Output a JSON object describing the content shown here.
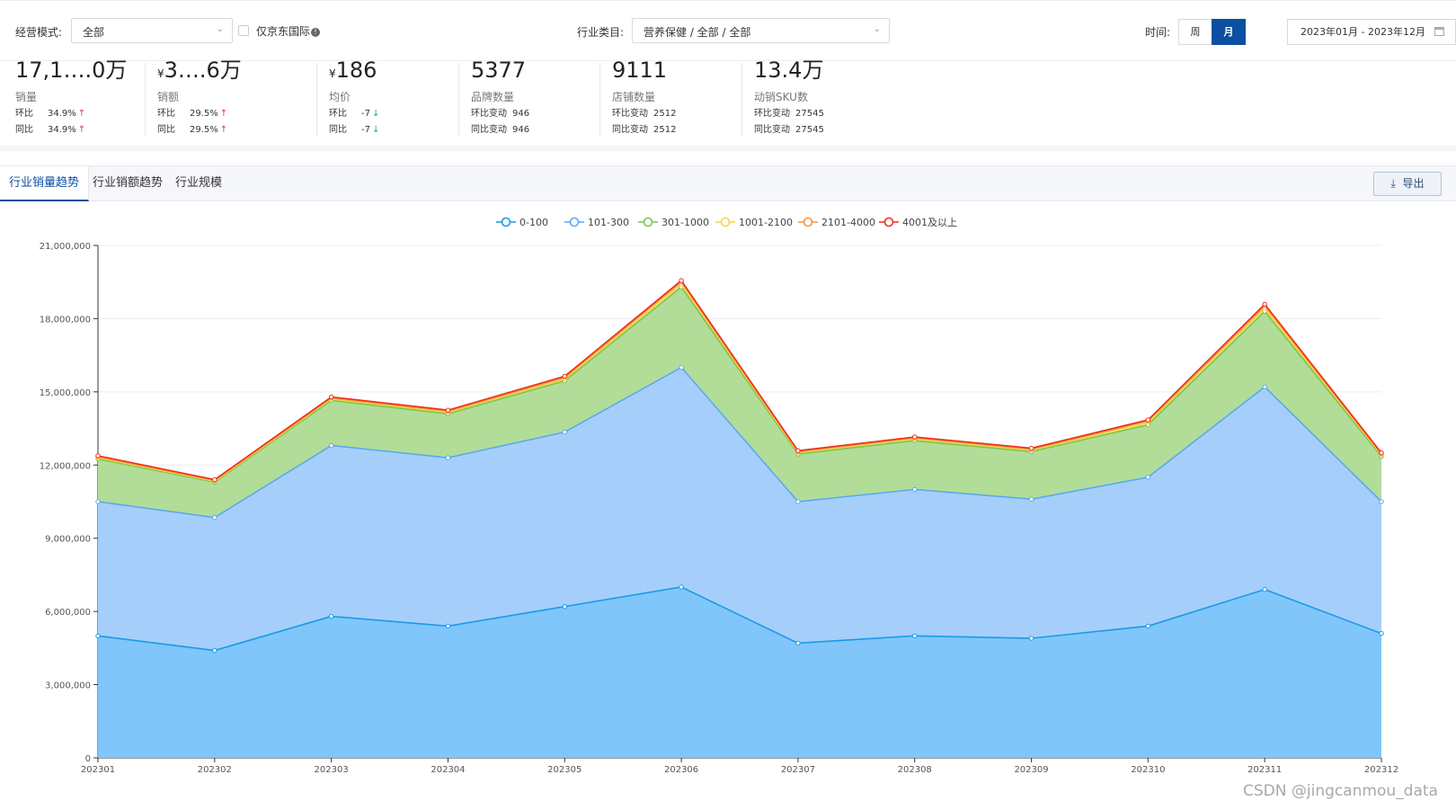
{
  "filters": {
    "mode_label": "经营模式:",
    "mode_value": "全部",
    "jd_intl_label": "仅京东国际",
    "industry_label": "行业类目:",
    "industry_value": "营养保健 / 全部 / 全部",
    "time_label": "时间:",
    "week_btn": "周",
    "month_btn": "月",
    "date_range": "2023年01月 - 2023年12月"
  },
  "kpis": [
    {
      "value": "17,1….0万",
      "value_prefix": "",
      "name": "销量",
      "row1_label": "环比",
      "row1_value": "34.9%",
      "row1_dir": "up",
      "row2_label": "同比",
      "row2_value": "34.9%",
      "row2_dir": "up"
    },
    {
      "value": "3….6万",
      "value_prefix": "¥",
      "name": "销额",
      "row1_label": "环比",
      "row1_value": "29.5%",
      "row1_dir": "up",
      "row2_label": "同比",
      "row2_value": "29.5%",
      "row2_dir": "up"
    },
    {
      "value": "186",
      "value_prefix": "¥",
      "name": "均价",
      "row1_label": "环比",
      "row1_value": "-7",
      "row1_dir": "down",
      "row2_label": "同比",
      "row2_value": "-7",
      "row2_dir": "down"
    },
    {
      "value": "5377",
      "value_prefix": "",
      "name": "品牌数量",
      "row1_label": "环比变动",
      "row1_value": "946",
      "row1_dir": "",
      "row2_label": "同比变动",
      "row2_value": "946",
      "row2_dir": ""
    },
    {
      "value": "9111",
      "value_prefix": "",
      "name": "店铺数量",
      "row1_label": "环比变动",
      "row1_value": "2512",
      "row1_dir": "",
      "row2_label": "同比变动",
      "row2_value": "2512",
      "row2_dir": ""
    },
    {
      "value": "13.4万",
      "value_prefix": "",
      "name": "动销SKU数",
      "row1_label": "环比变动",
      "row1_value": "27545",
      "row1_dir": "",
      "row2_label": "同比变动",
      "row2_value": "27545",
      "row2_dir": ""
    }
  ],
  "tabs": [
    "行业销量趋势",
    "行业销额趋势",
    "行业规模"
  ],
  "export_label": "导出",
  "watermark": "CSDN @jingcanmou_data",
  "colors": {
    "accent": "#0a4fa0",
    "up": "#e4393c",
    "down": "#34a853"
  },
  "chart_data": {
    "type": "area",
    "stacked": true,
    "categories": [
      "202301",
      "202302",
      "202303",
      "202304",
      "202305",
      "202306",
      "202307",
      "202308",
      "202309",
      "202310",
      "202311",
      "202312"
    ],
    "ylim": [
      0,
      21000000
    ],
    "yticks": [
      0,
      3000000,
      6000000,
      9000000,
      12000000,
      15000000,
      18000000,
      21000000
    ],
    "ytick_labels": [
      "0",
      "3,000,000",
      "6,000,000",
      "9,000,000",
      "12,000,000",
      "15,000,000",
      "18,000,000",
      "21,000,000"
    ],
    "legend_position": "top-center",
    "series": [
      {
        "name": "0-100",
        "color": "#1a9ae8",
        "fill": "#80c6fa",
        "values": [
          5000000,
          4400000,
          5800000,
          5400000,
          6200000,
          7000000,
          4700000,
          5000000,
          4900000,
          5400000,
          6900000,
          5100000
        ]
      },
      {
        "name": "101-300",
        "color": "#5aa9f0",
        "fill": "#a5cffa",
        "values": [
          5500000,
          5450000,
          7000000,
          6900000,
          7150000,
          9000000,
          5800000,
          6000000,
          5700000,
          6100000,
          8300000,
          5400000
        ]
      },
      {
        "name": "301-1000",
        "color": "#7cc44e",
        "fill": "#b1dd99",
        "values": [
          1750000,
          1450000,
          1850000,
          1800000,
          2100000,
          3300000,
          1950000,
          2000000,
          1950000,
          2150000,
          3100000,
          1850000
        ]
      },
      {
        "name": "1001-2100",
        "color": "#f7d447",
        "fill": "#f8e38a",
        "values": [
          50000,
          40000,
          60000,
          60000,
          80000,
          130000,
          60000,
          70000,
          60000,
          100000,
          130000,
          70000
        ]
      },
      {
        "name": "2101-4000",
        "color": "#f6963a",
        "fill": "#f9b575",
        "values": [
          40000,
          30000,
          40000,
          50000,
          60000,
          80000,
          40000,
          40000,
          40000,
          60000,
          100000,
          40000
        ]
      },
      {
        "name": "4001及以上",
        "color": "#ef2e1e",
        "fill": "#f36b5f",
        "values": [
          40000,
          30000,
          40000,
          40000,
          50000,
          50000,
          40000,
          40000,
          40000,
          40000,
          60000,
          40000
        ]
      }
    ]
  }
}
